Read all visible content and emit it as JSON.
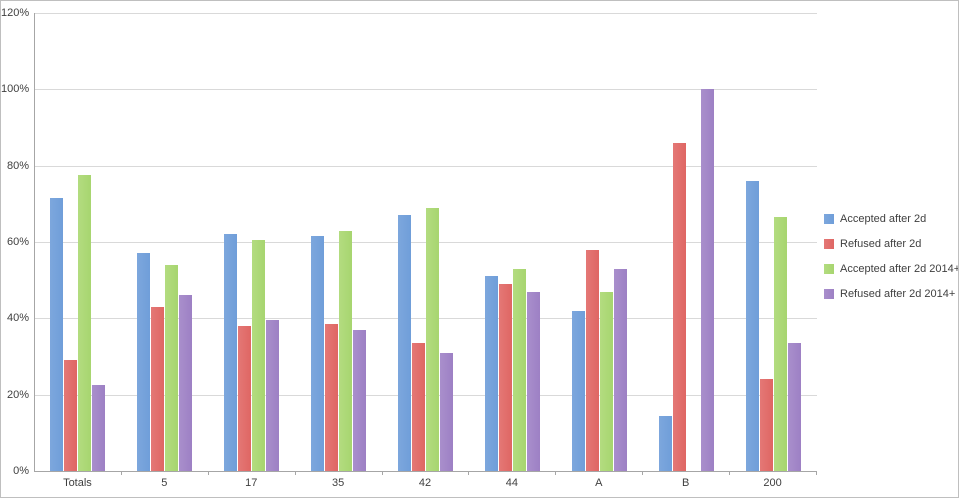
{
  "chart_data": {
    "type": "bar",
    "title": "",
    "xlabel": "",
    "ylabel": "",
    "ylim": [
      0,
      120
    ],
    "y_tick_step": 20,
    "y_tick_labels": [
      "0%",
      "20%",
      "40%",
      "60%",
      "80%",
      "100%",
      "120%"
    ],
    "grid": true,
    "legend_position": "right",
    "categories": [
      "Totals",
      "5",
      "17",
      "35",
      "42",
      "44",
      "A",
      "B",
      "200"
    ],
    "series": [
      {
        "name": "Accepted after 2d",
        "color": "#7da7dd",
        "color_edge": "#6f9ed9",
        "values": [
          71.5,
          57,
          62,
          61.5,
          67,
          51,
          42,
          14.5,
          76
        ]
      },
      {
        "name": "Refused after 2d",
        "color": "#e47876",
        "color_edge": "#df6663",
        "values": [
          29,
          43,
          38,
          38.5,
          33.5,
          49,
          58,
          86,
          24
        ]
      },
      {
        "name": "Accepted after 2d 2014+",
        "color": "#b3dc80",
        "color_edge": "#a7d56f",
        "values": [
          77.5,
          54,
          60.5,
          63,
          69,
          53,
          47,
          0,
          66.5
        ]
      },
      {
        "name": "Refused after 2d 2014+",
        "color": "#a98fcc",
        "color_edge": "#9d80c4",
        "values": [
          22.5,
          46,
          39.5,
          37,
          31,
          47,
          53,
          100,
          33.5
        ]
      }
    ]
  }
}
